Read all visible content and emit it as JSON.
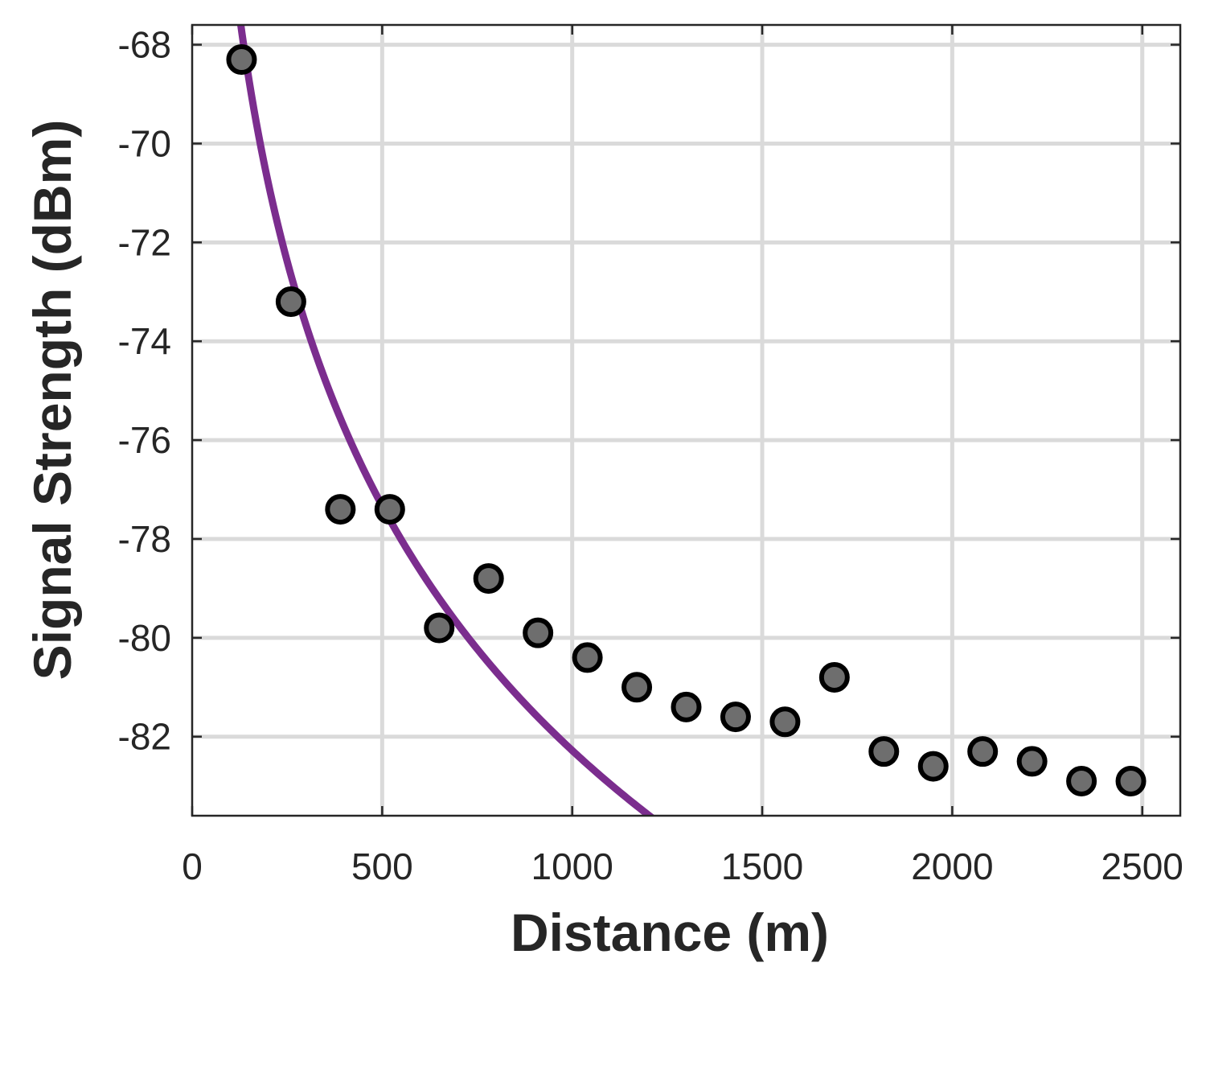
{
  "chart_data": {
    "type": "scatter",
    "title": "",
    "xlabel": "Distance (m)",
    "ylabel": "Signal Strength (dBm)",
    "xlim": [
      0,
      2600
    ],
    "ylim": [
      -83.6,
      -67.6
    ],
    "x_ticks": [
      0,
      500,
      1000,
      1500,
      2000,
      2500
    ],
    "y_ticks": [
      -82,
      -80,
      -78,
      -76,
      -74,
      -72,
      -70,
      -68
    ],
    "x_tick_labels": [
      "0",
      "500",
      "1000",
      "1500",
      "2000",
      "2500"
    ],
    "y_tick_labels": [
      "-82",
      "-80",
      "-78",
      "-76",
      "-74",
      "-72",
      "-70",
      "-68"
    ],
    "grid": true,
    "legend": "none",
    "series": [
      {
        "kind": "scatter",
        "color": "#6e6e6e",
        "edge_color": "#000000",
        "points": [
          {
            "x": 130,
            "y": -68.3
          },
          {
            "x": 260,
            "y": -73.2
          },
          {
            "x": 390,
            "y": -77.4
          },
          {
            "x": 520,
            "y": -77.4
          },
          {
            "x": 650,
            "y": -79.8
          },
          {
            "x": 780,
            "y": -78.8
          },
          {
            "x": 910,
            "y": -79.9
          },
          {
            "x": 1040,
            "y": -80.4
          },
          {
            "x": 1170,
            "y": -81.0
          },
          {
            "x": 1300,
            "y": -81.4
          },
          {
            "x": 1430,
            "y": -81.6
          },
          {
            "x": 1560,
            "y": -81.7
          },
          {
            "x": 1690,
            "y": -80.8
          },
          {
            "x": 1820,
            "y": -82.3
          },
          {
            "x": 1950,
            "y": -82.6
          },
          {
            "x": 2080,
            "y": -82.3
          },
          {
            "x": 2210,
            "y": -82.5
          },
          {
            "x": 2340,
            "y": -82.9
          },
          {
            "x": 2470,
            "y": -82.9
          }
        ]
      },
      {
        "kind": "line",
        "color": "#7b2d8e",
        "curve": {
          "form": "a + b*log10(x)",
          "a": -32.96,
          "b": -16.44
        }
      }
    ]
  }
}
